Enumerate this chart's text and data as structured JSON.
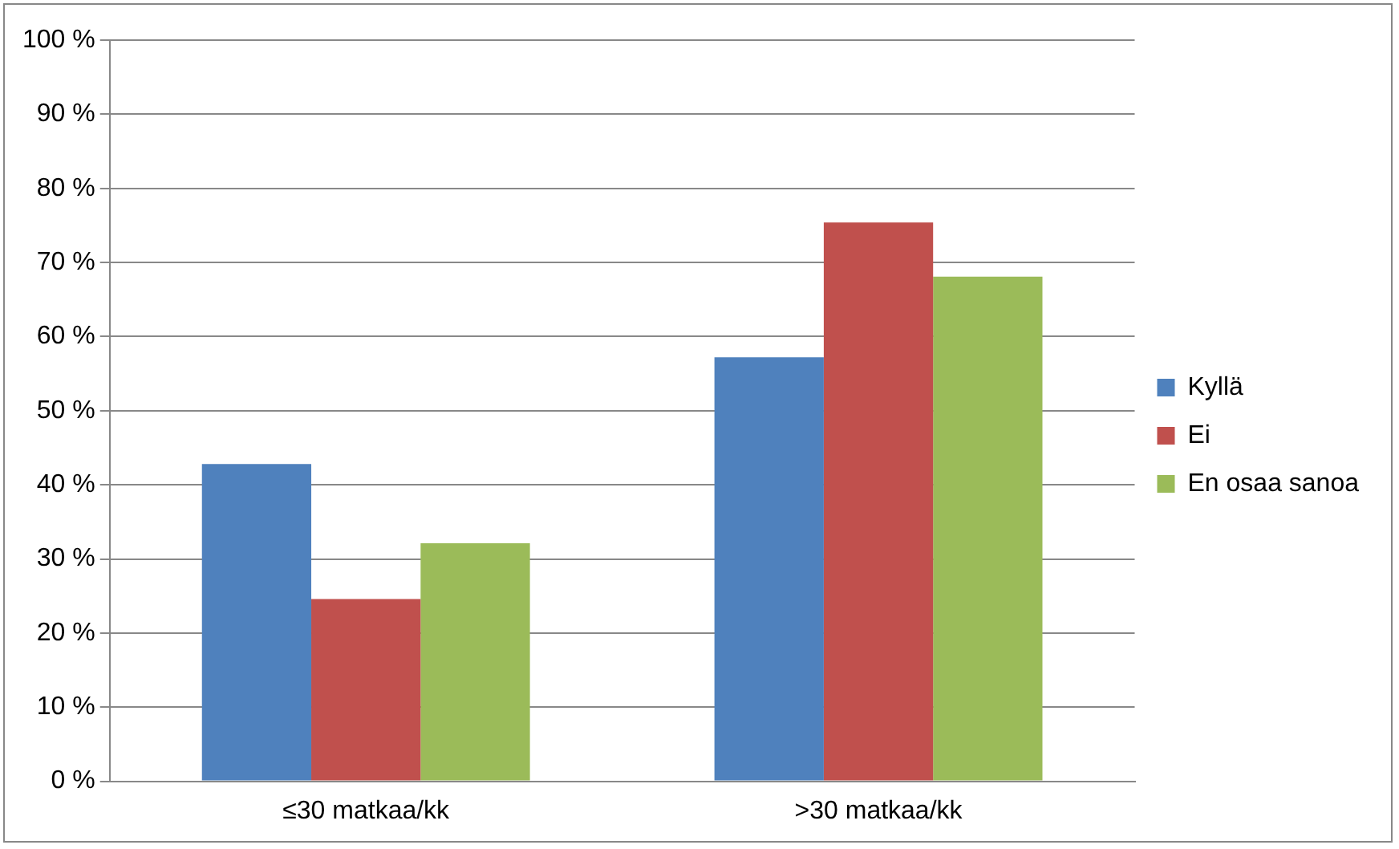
{
  "chart_data": {
    "type": "bar",
    "categories": [
      "≤30 matkaa/kk",
      ">30 matkaa/kk"
    ],
    "series": [
      {
        "name": "Kyllä",
        "color": "#4f81bd",
        "values": [
          42.8,
          57.2
        ]
      },
      {
        "name": "Ei",
        "color": "#c0504d",
        "values": [
          24.6,
          75.4
        ]
      },
      {
        "name": "En osaa sanoa",
        "color": "#9bbb59",
        "values": [
          32.1,
          68.1
        ]
      }
    ],
    "ylim": [
      0,
      100
    ],
    "yticks": [
      {
        "value": 0,
        "label": "0 %"
      },
      {
        "value": 10,
        "label": "10 %"
      },
      {
        "value": 20,
        "label": "20 %"
      },
      {
        "value": 30,
        "label": "30 %"
      },
      {
        "value": 40,
        "label": "40 %"
      },
      {
        "value": 50,
        "label": "50 %"
      },
      {
        "value": 60,
        "label": "60 %"
      },
      {
        "value": 70,
        "label": "70 %"
      },
      {
        "value": 80,
        "label": "80 %"
      },
      {
        "value": 90,
        "label": "90 %"
      },
      {
        "value": 100,
        "label": "100 %"
      }
    ],
    "grid": "y",
    "legend": "right"
  }
}
